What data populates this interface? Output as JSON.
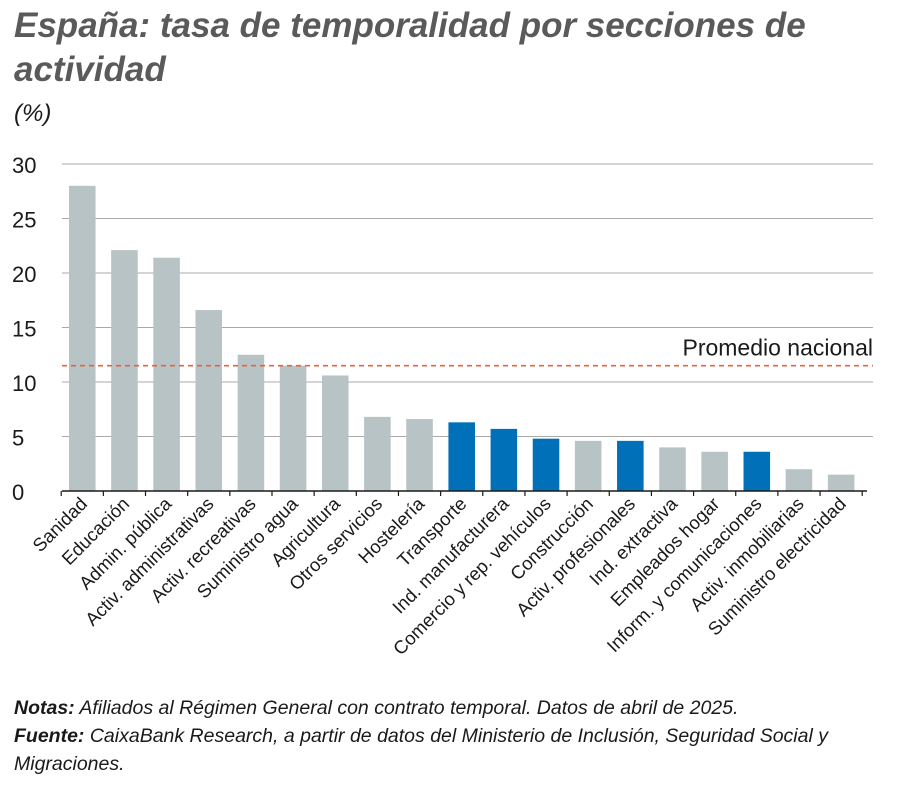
{
  "title": "España: tasa de temporalidad por secciones de actividad",
  "unit_label": "(%)",
  "notes": {
    "notes_label": "Notas:",
    "notes_text": "Afiliados al Régimen General con contrato temporal. Datos de abril de 2025.",
    "source_label": "Fuente:",
    "source_text": "CaixaBank Research, a partir de datos del Ministerio de Inclusión, Seguridad Social y Migraciones."
  },
  "colors": {
    "bar_default": "#b8c3c6",
    "bar_highlight": "#0070b8",
    "reference_line": "#e8623a",
    "grid": "#aaaaaa",
    "axis": "#1a1a1a"
  },
  "chart_data": {
    "type": "bar",
    "title": "España: tasa de temporalidad por secciones de actividad",
    "xlabel": "",
    "ylabel": "(%)",
    "ylim": [
      0,
      30
    ],
    "yticks": [
      0,
      5,
      10,
      15,
      20,
      25,
      30
    ],
    "grid": true,
    "categories": [
      "Sanidad",
      "Educación",
      "Admin. pública",
      "Activ. administrativas",
      "Activ. recreativas",
      "Suministro agua",
      "Agricultura",
      "Otros servicios",
      "Hostelería",
      "Transporte",
      "Ind. manufacturera",
      "Comercio y rep. vehículos",
      "Construcción",
      "Activ. profesionales",
      "Ind. extractiva",
      "Empleados hogar",
      "Inform. y comunicaciones",
      "Activ. inmobiliarias",
      "Suministro electricidad"
    ],
    "values": [
      28.0,
      22.1,
      21.4,
      16.6,
      12.5,
      11.5,
      10.6,
      6.8,
      6.6,
      6.3,
      5.7,
      4.8,
      4.6,
      4.6,
      4.0,
      3.6,
      3.6,
      2.0,
      1.5
    ],
    "highlighted": [
      false,
      false,
      false,
      false,
      false,
      false,
      false,
      false,
      false,
      true,
      true,
      true,
      false,
      true,
      false,
      false,
      true,
      false,
      false
    ],
    "reference_line": {
      "label": "Promedio nacional",
      "value": 11.5
    }
  }
}
